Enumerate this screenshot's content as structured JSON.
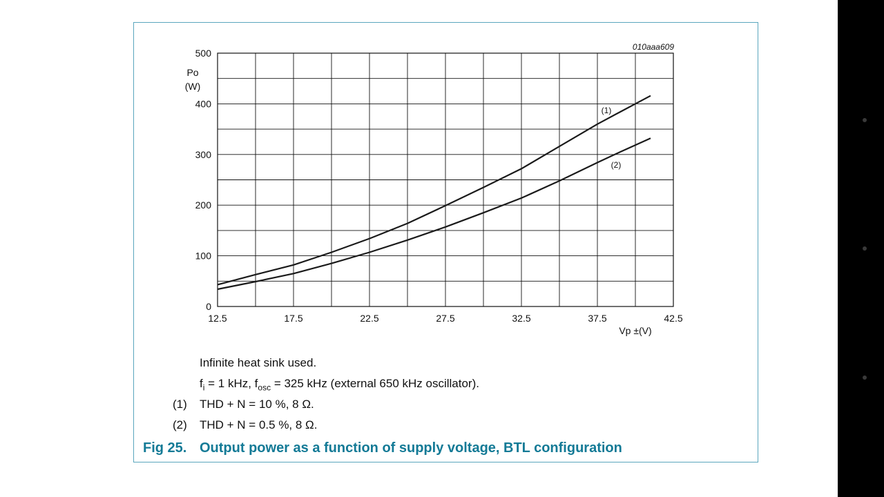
{
  "figure": {
    "id_label": "010aaa609",
    "caption_number": "Fig 25.",
    "caption_text": "Output power as a function of supply voltage, BTL configuration",
    "notes": {
      "line1": "Infinite heat sink used.",
      "line2_pre": "f",
      "line2_sub1": "i",
      "line2_mid": " = 1 kHz, f",
      "line2_sub2": "osc",
      "line2_post": " = 325 kHz (external 650 kHz oscillator).",
      "item1_num": "(1)",
      "item1_text": "THD + N = 10 %, 8 Ω.",
      "item2_num": "(2)",
      "item2_text": "THD + N = 0.5 %, 8 Ω."
    }
  },
  "chart_data": {
    "type": "line",
    "ylabel_line1": "Po",
    "ylabel_line2": "(W)",
    "xlabel": "Vp ±(V)",
    "xlim": [
      12.5,
      42.5
    ],
    "ylim": [
      0,
      500
    ],
    "x_ticks": [
      "12.5",
      "17.5",
      "22.5",
      "27.5",
      "32.5",
      "37.5",
      "42.5"
    ],
    "y_ticks": [
      "0",
      "100",
      "200",
      "300",
      "400",
      "500"
    ],
    "grid": true,
    "series": [
      {
        "name": "(1)",
        "x": [
          12.5,
          15,
          17.5,
          20,
          22.5,
          25,
          27.5,
          30,
          32.5,
          35,
          37.5,
          39,
          41
        ],
        "y": [
          43,
          63,
          82,
          107,
          134,
          164,
          199,
          235,
          272,
          316,
          360,
          384,
          416
        ]
      },
      {
        "name": "(2)",
        "x": [
          12.5,
          15,
          17.5,
          20,
          22.5,
          25,
          27.5,
          30,
          32.5,
          35,
          37.5,
          39,
          41
        ],
        "y": [
          34,
          49,
          65,
          85,
          107,
          131,
          157,
          185,
          214,
          248,
          284,
          305,
          332
        ]
      }
    ]
  }
}
